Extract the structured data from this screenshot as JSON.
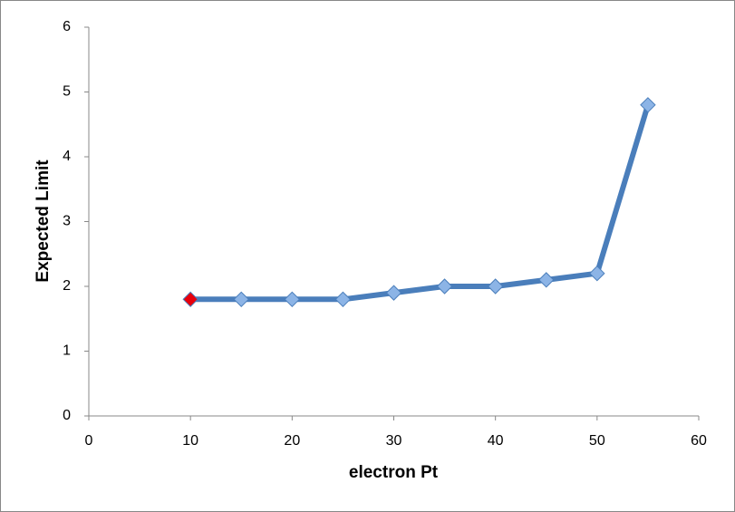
{
  "chart_data": {
    "type": "line",
    "xlabel": "electron Pt",
    "ylabel": "Expected Limit",
    "x": [
      10,
      15,
      20,
      25,
      30,
      35,
      40,
      45,
      50,
      55
    ],
    "series": [
      {
        "color": "#4a7ebb",
        "marker_color": "#8cb4e6",
        "marker_colors": [
          "#e8000b",
          "#8cb4e6",
          "#8cb4e6",
          "#8cb4e6",
          "#8cb4e6",
          "#8cb4e6",
          "#8cb4e6",
          "#8cb4e6",
          "#8cb4e6",
          "#8cb4e6"
        ],
        "values": [
          1.8,
          1.8,
          1.8,
          1.8,
          1.9,
          2.0,
          2.0,
          2.1,
          2.2,
          4.8
        ]
      }
    ],
    "xlim": [
      0,
      60
    ],
    "xticks": [
      0,
      10,
      20,
      30,
      40,
      50,
      60
    ],
    "ylim": [
      0,
      6
    ],
    "yticks": [
      0,
      1,
      2,
      3,
      4,
      5,
      6
    ],
    "grid": false
  }
}
